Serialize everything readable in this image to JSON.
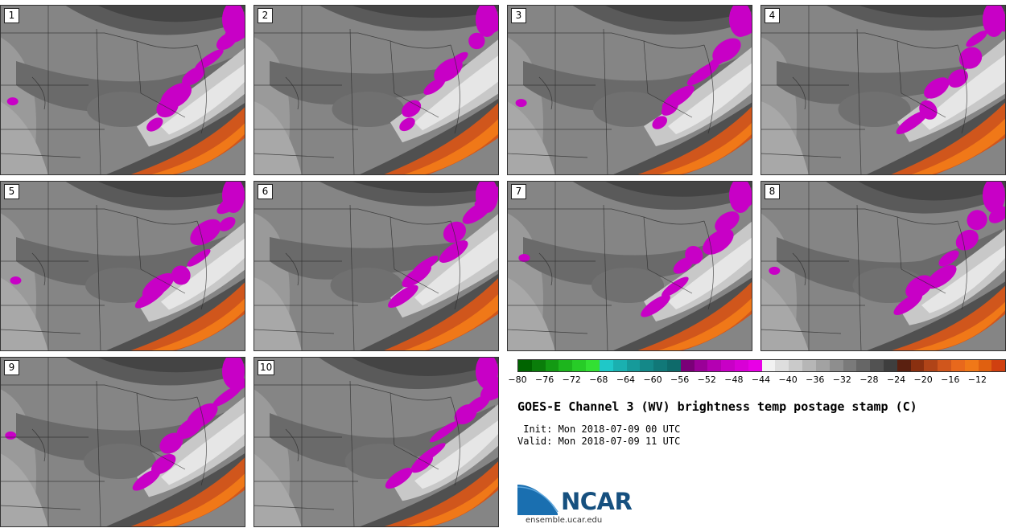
{
  "stamps": [
    {
      "label": "1"
    },
    {
      "label": "2"
    },
    {
      "label": "3"
    },
    {
      "label": "4"
    },
    {
      "label": "5"
    },
    {
      "label": "6"
    },
    {
      "label": "7"
    },
    {
      "label": "8"
    },
    {
      "label": "9"
    },
    {
      "label": "10"
    }
  ],
  "colorbar": {
    "ticks": [
      "−80",
      "−76",
      "−72",
      "−68",
      "−64",
      "−60",
      "−56",
      "−52",
      "−48",
      "−44",
      "−40",
      "−36",
      "−32",
      "−28",
      "−24",
      "−20",
      "−16",
      "−12"
    ],
    "colors": [
      "#006400",
      "#0a7d0a",
      "#139a13",
      "#1db51d",
      "#27cc27",
      "#33e033",
      "#1fc8c8",
      "#1ab0b0",
      "#169a9a",
      "#148888",
      "#117878",
      "#0e6a6a",
      "#7a0078",
      "#9a0098",
      "#b400b2",
      "#c800c6",
      "#d800d6",
      "#e800e6",
      "#f2f2f2",
      "#dedede",
      "#cacaca",
      "#b6b6b6",
      "#a2a2a2",
      "#8e8e8e",
      "#7a7a7a",
      "#666666",
      "#525252",
      "#3e3e3e",
      "#5a2010",
      "#8a3010",
      "#b04418",
      "#d0561c",
      "#e8681c",
      "#f07818",
      "#e06010",
      "#d04010"
    ]
  },
  "title": "GOES-E Channel 3 (WV) brightness temp postage stamp (C)",
  "init_line": " Init: Mon 2018-07-09 00 UTC",
  "valid_line": "Valid: Mon 2018-07-09 11 UTC",
  "logo": {
    "text": "NCAR",
    "site": "ensemble.ucar.edu",
    "color_blue": "#1a6fb0",
    "color_dark": "#16507f"
  }
}
